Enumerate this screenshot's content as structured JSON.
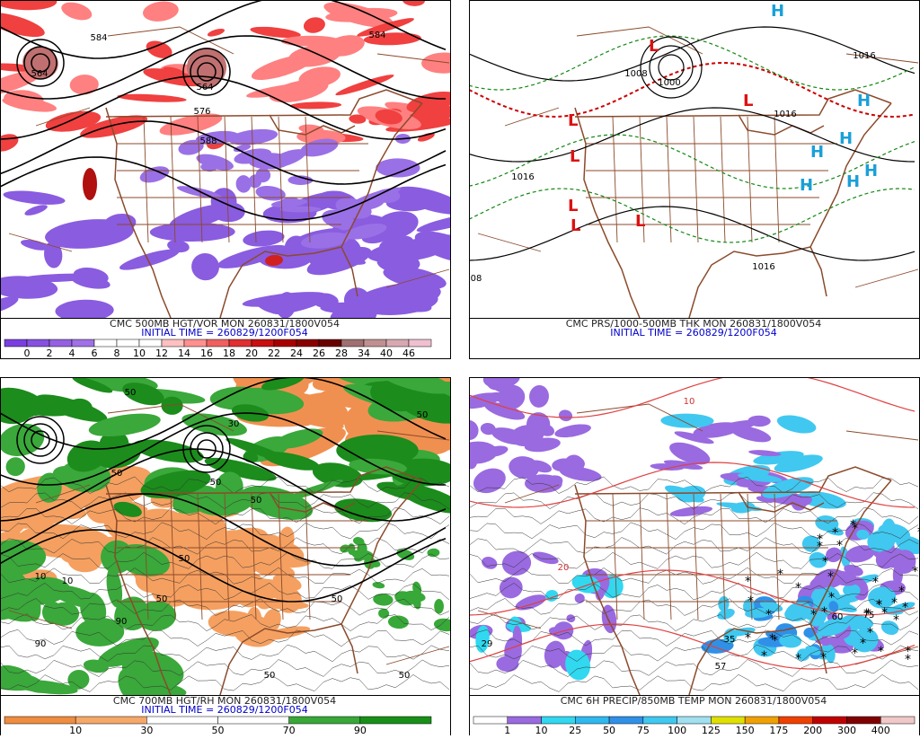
{
  "panels": [
    {
      "caption": "CMC 500MB HGT/VOR MON 260831/1800V054",
      "initial_time": "INITIAL TIME = 260829/1200F054",
      "contour_labels": [
        "584",
        "584",
        "564",
        "576",
        "588",
        "564"
      ],
      "colorbar": {
        "labels": [
          0,
          2,
          4,
          6,
          8,
          10,
          12,
          14,
          16,
          18,
          20,
          22,
          24,
          26,
          28,
          34,
          40,
          46
        ],
        "colors": [
          "#7b3fe0",
          "#8650e0",
          "#9560e2",
          "#a070e6",
          "#ffffff",
          "#ffffff",
          "#ffffff",
          "#ffc0c0",
          "#ff9090",
          "#f06060",
          "#e03030",
          "#c81010",
          "#a80000",
          "#880000",
          "#6a0000",
          "#a07070",
          "#c09090",
          "#d8a8b0",
          "#f0c0d0"
        ]
      }
    },
    {
      "caption": "CMC PRS/1000-500MB THK MON 260831/1800V054",
      "initial_time": "INITIAL TIME = 260829/1200F054",
      "contour_labels": [
        "1008",
        "1000",
        "1016",
        "1016",
        "1016",
        "1016",
        "08"
      ],
      "centers": [
        "L",
        "L",
        "L",
        "L",
        "L",
        "L",
        "L",
        "H",
        "H",
        "H",
        "H",
        "H",
        "H",
        "H"
      ]
    },
    {
      "caption": "CMC 700MB HGT/RH MON 260831/1800V054",
      "initial_time": "INITIAL TIME = 260829/1200F054",
      "contour_labels": [
        "50",
        "50",
        "50",
        "10",
        "10",
        "50",
        "50",
        "50",
        "90",
        "90",
        "50",
        "50",
        "50",
        "30",
        "50"
      ],
      "colorbar": {
        "labels": [
          10,
          30,
          50,
          70,
          90
        ],
        "colors": [
          "#f08c40",
          "#f5a868",
          "#ffffff",
          "#ffffff",
          "#38a838",
          "#189018"
        ]
      }
    },
    {
      "caption": "CMC 6H PRECIP/850MB TEMP MON 260831/1800V054",
      "contour_labels": [
        "29",
        "57",
        "75",
        "60",
        "35",
        "20",
        "10"
      ],
      "colorbar": {
        "labels": [
          1,
          10,
          25,
          50,
          75,
          100,
          125,
          150,
          175,
          200,
          300,
          400
        ],
        "colors": [
          "#ffffff",
          "#9a6ae0",
          "#30d8f0",
          "#30b8f0",
          "#3090e8",
          "#40c8f0",
          "#a0e0f0",
          "#e0e000",
          "#f0a000",
          "#f04000",
          "#c00000",
          "#800000",
          "#f0c8c8"
        ]
      }
    }
  ]
}
